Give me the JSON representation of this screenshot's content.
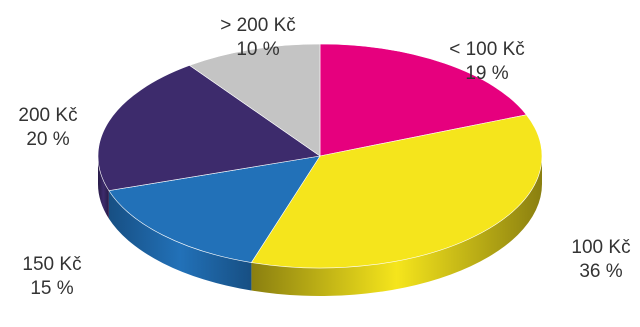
{
  "chart_data": {
    "type": "pie",
    "title": "",
    "style": "3d",
    "categories": [
      "< 100 Kč",
      "100 Kč",
      "150 Kč",
      "200 Kč",
      "> 200 Kč"
    ],
    "values": [
      19,
      36,
      15,
      20,
      10
    ],
    "value_labels": [
      "19 %",
      "36 %",
      "15 %",
      "20 %",
      "10 %"
    ],
    "colors": [
      "#e6007e",
      "#f5e51c",
      "#2271b8",
      "#3d2b6c",
      "#c4c4c4"
    ],
    "side_colors": [
      "#9c0055",
      "#8a7f10",
      "#174f83",
      "#281b48",
      "#8c8c8c"
    ],
    "legend": "none"
  }
}
